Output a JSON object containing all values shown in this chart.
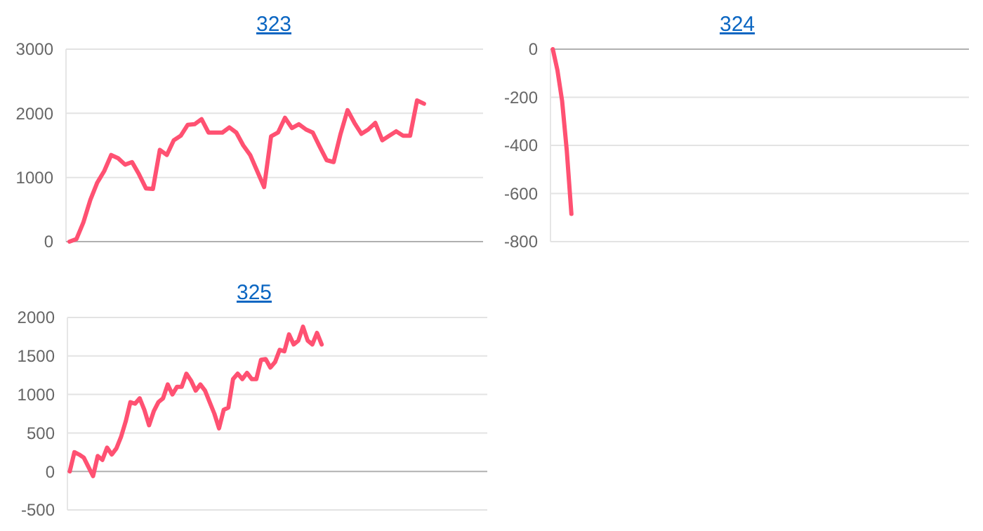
{
  "chart_data": [
    {
      "type": "line",
      "title": "323",
      "grid": "y",
      "color": "#ff5172",
      "ylim": [
        0,
        3000
      ],
      "yticks": [
        0,
        1000,
        2000,
        3000
      ],
      "categories": [
        null,
        null,
        null,
        null,
        null,
        null,
        null,
        null,
        null,
        null,
        null,
        null,
        null,
        null,
        null,
        null,
        null,
        null,
        null,
        null,
        null,
        null,
        null,
        null,
        null,
        null,
        null,
        null,
        null,
        null,
        null,
        null,
        null,
        null,
        null,
        null,
        null,
        null,
        null,
        null,
        null,
        null,
        null,
        null,
        null,
        null,
        null,
        null,
        null,
        null,
        null,
        null,
        null,
        null,
        null,
        null,
        null,
        null,
        null,
        null
      ],
      "values": [
        0,
        40,
        300,
        650,
        920,
        1100,
        1350,
        1300,
        1200,
        1240,
        1050,
        830,
        820,
        1430,
        1350,
        1580,
        1650,
        1820,
        1830,
        1910,
        1700,
        1700,
        1700,
        1780,
        1700,
        1500,
        1350,
        1100,
        850,
        1640,
        1700,
        1930,
        1770,
        1830,
        1750,
        1700,
        1480,
        1270,
        1240,
        1680,
        2050,
        1850,
        1680,
        1750,
        1850,
        1580,
        1650,
        1720,
        1650,
        1650,
        2200,
        2150,
        null,
        null,
        null,
        null,
        null,
        null,
        null,
        null
      ]
    },
    {
      "type": "line",
      "title": "324",
      "grid": "y",
      "color": "#ff5172",
      "ylim": [
        -800,
        0
      ],
      "yticks": [
        -800,
        -600,
        -400,
        -200,
        0
      ],
      "categories": [
        null,
        null,
        null,
        null,
        null,
        null,
        null,
        null,
        null,
        null,
        null,
        null,
        null,
        null,
        null,
        null,
        null,
        null,
        null,
        null,
        null,
        null,
        null,
        null,
        null,
        null,
        null,
        null,
        null,
        null,
        null,
        null,
        null,
        null,
        null,
        null,
        null,
        null,
        null,
        null,
        null,
        null,
        null,
        null,
        null,
        null,
        null,
        null,
        null,
        null,
        null,
        null,
        null,
        null,
        null,
        null,
        null,
        null,
        null,
        null,
        null,
        null,
        null,
        null,
        null,
        null,
        null,
        null,
        null,
        null,
        null,
        null,
        null,
        null,
        null,
        null,
        null,
        null,
        null,
        null,
        null,
        null,
        null,
        null,
        null,
        null,
        null,
        null,
        null,
        null
      ],
      "values": [
        0,
        -88,
        -215,
        -420,
        -685,
        null,
        null,
        null,
        null,
        null,
        null,
        null,
        null,
        null,
        null,
        null,
        null,
        null,
        null,
        null,
        null,
        null,
        null,
        null,
        null,
        null,
        null,
        null,
        null,
        null,
        null,
        null,
        null,
        null,
        null,
        null,
        null,
        null,
        null,
        null,
        null,
        null,
        null,
        null,
        null,
        null,
        null,
        null,
        null,
        null,
        null,
        null,
        null,
        null,
        null,
        null,
        null,
        null,
        null,
        null,
        null,
        null,
        null,
        null,
        null,
        null,
        null,
        null,
        null,
        null,
        null,
        null,
        null,
        null,
        null,
        null,
        null,
        null,
        null,
        null,
        null,
        null,
        null,
        null,
        null,
        null,
        null,
        null,
        null,
        null
      ]
    },
    {
      "type": "line",
      "title": "325",
      "grid": "y",
      "color": "#ff5172",
      "ylim": [
        -500,
        2000
      ],
      "yticks": [
        -500,
        0,
        500,
        1000,
        1500,
        2000
      ],
      "categories": [
        null,
        null,
        null,
        null,
        null,
        null,
        null,
        null,
        null,
        null,
        null,
        null,
        null,
        null,
        null,
        null,
        null,
        null,
        null,
        null,
        null,
        null,
        null,
        null,
        null,
        null,
        null,
        null,
        null,
        null,
        null,
        null,
        null,
        null,
        null,
        null,
        null,
        null,
        null,
        null,
        null,
        null,
        null,
        null,
        null,
        null,
        null,
        null,
        null,
        null,
        null,
        null,
        null,
        null,
        null,
        null,
        null,
        null,
        null,
        null,
        null,
        null,
        null,
        null,
        null,
        null,
        null,
        null,
        null,
        null,
        null,
        null,
        null,
        null,
        null,
        null,
        null,
        null,
        null,
        null,
        null,
        null,
        null,
        null,
        null,
        null,
        null,
        null,
        null,
        null
      ],
      "values": [
        0,
        250,
        220,
        180,
        60,
        -60,
        200,
        150,
        310,
        220,
        300,
        450,
        650,
        900,
        880,
        950,
        800,
        600,
        780,
        900,
        950,
        1130,
        1000,
        1100,
        1100,
        1270,
        1180,
        1050,
        1130,
        1050,
        900,
        750,
        560,
        800,
        830,
        1200,
        1270,
        1200,
        1280,
        1200,
        1200,
        1450,
        1460,
        1350,
        1420,
        1580,
        1560,
        1780,
        1650,
        1700,
        1880,
        1700,
        1650,
        1800,
        1650,
        null,
        null,
        null,
        null,
        null,
        null,
        null,
        null,
        null,
        null,
        null,
        null,
        null,
        null,
        null,
        null,
        null,
        null,
        null,
        null,
        null,
        null,
        null,
        null,
        null,
        null,
        null,
        null,
        null,
        null,
        null,
        null,
        null,
        null,
        null
      ]
    }
  ]
}
